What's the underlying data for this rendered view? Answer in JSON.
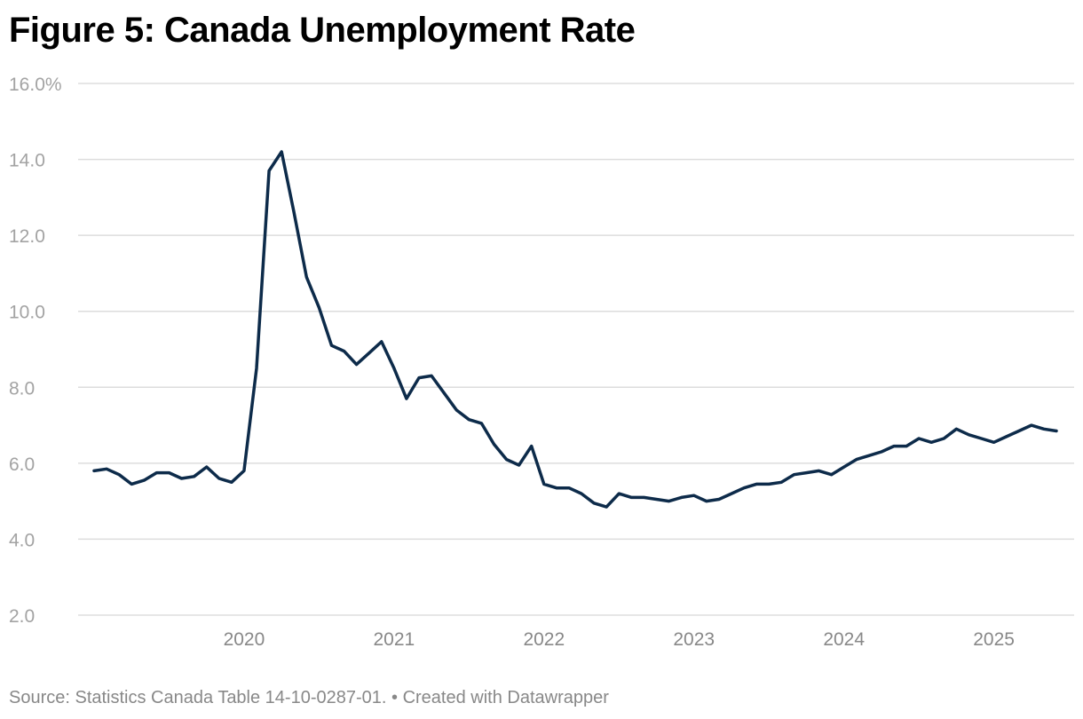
{
  "title": "Figure 5: Canada Unemployment Rate",
  "source": "Source: Statistics Canada Table 14-10-0287-01. • Created with Datawrapper",
  "colors": {
    "line": "#0d2b4a",
    "grid": "#dddddd",
    "tick": "#a3a3a3"
  },
  "chart_data": {
    "type": "line",
    "title": "Figure 5: Canada Unemployment Rate",
    "xlabel": "",
    "ylabel": "",
    "ylim": [
      2,
      16
    ],
    "yticks": [
      2,
      4,
      6,
      8,
      10,
      12,
      14,
      16
    ],
    "ytick_labels": [
      "2.0",
      "4.0",
      "6.0",
      "8.0",
      "10.0",
      "12.0",
      "14.0",
      "16.0%"
    ],
    "xlim": [
      "2019-01",
      "2025-06"
    ],
    "xticks": [
      "2020-01",
      "2021-01",
      "2022-01",
      "2023-01",
      "2024-01",
      "2025-01"
    ],
    "xtick_labels": [
      "2020",
      "2021",
      "2022",
      "2023",
      "2024",
      "2025"
    ],
    "grid": true,
    "legend": "none",
    "series": [
      {
        "x": [
          "2019-01",
          "2019-02",
          "2019-03",
          "2019-04",
          "2019-05",
          "2019-06",
          "2019-07",
          "2019-08",
          "2019-09",
          "2019-10",
          "2019-11",
          "2019-12",
          "2020-01",
          "2020-02",
          "2020-03",
          "2020-04",
          "2020-05",
          "2020-06",
          "2020-07",
          "2020-08",
          "2020-09",
          "2020-10",
          "2020-11",
          "2020-12",
          "2021-01",
          "2021-02",
          "2021-03",
          "2021-04",
          "2021-05",
          "2021-06",
          "2021-07",
          "2021-08",
          "2021-09",
          "2021-10",
          "2021-11",
          "2021-12",
          "2022-01",
          "2022-02",
          "2022-03",
          "2022-04",
          "2022-05",
          "2022-06",
          "2022-07",
          "2022-08",
          "2022-09",
          "2022-10",
          "2022-11",
          "2022-12",
          "2023-01",
          "2023-02",
          "2023-03",
          "2023-04",
          "2023-05",
          "2023-06",
          "2023-07",
          "2023-08",
          "2023-09",
          "2023-10",
          "2023-11",
          "2023-12",
          "2024-01",
          "2024-02",
          "2024-03",
          "2024-04",
          "2024-05",
          "2024-06",
          "2024-07",
          "2024-08",
          "2024-09",
          "2024-10",
          "2024-11",
          "2024-12",
          "2025-01",
          "2025-02",
          "2025-03",
          "2025-04",
          "2025-05",
          "2025-06"
        ],
        "values": [
          5.8,
          5.85,
          5.7,
          5.45,
          5.55,
          5.75,
          5.75,
          5.6,
          5.65,
          5.9,
          5.6,
          5.5,
          5.8,
          8.5,
          13.7,
          14.2,
          12.6,
          10.9,
          10.1,
          9.1,
          8.95,
          8.6,
          8.9,
          9.2,
          8.5,
          7.7,
          8.25,
          8.3,
          7.85,
          7.4,
          7.15,
          7.05,
          6.5,
          6.1,
          5.95,
          6.45,
          5.45,
          5.35,
          5.35,
          5.2,
          4.95,
          4.85,
          5.2,
          5.1,
          5.1,
          5.05,
          5.0,
          5.1,
          5.15,
          5.0,
          5.05,
          5.2,
          5.35,
          5.45,
          5.45,
          5.5,
          5.7,
          5.75,
          5.8,
          5.7,
          5.9,
          6.1,
          6.2,
          6.3,
          6.45,
          6.45,
          6.65,
          6.55,
          6.65,
          6.9,
          6.75,
          6.65,
          6.55,
          6.7,
          6.85,
          7.0,
          6.9,
          6.85
        ]
      }
    ]
  }
}
